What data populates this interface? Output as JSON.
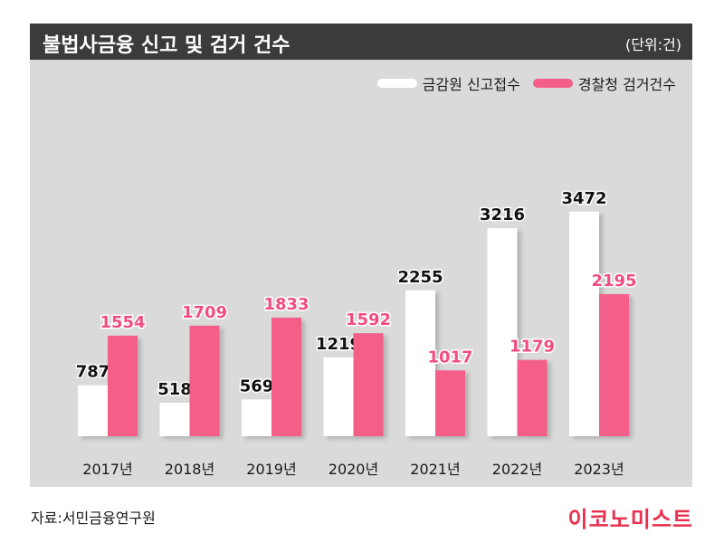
{
  "header": {
    "title": "불법사금융 신고 및 검거 건수",
    "unit": "(단위:건)"
  },
  "footer": {
    "source": "자료:서민금융연구원",
    "brand": "이코노미스트"
  },
  "colors": {
    "report": "#ffffff",
    "arrest": "#f45f8a",
    "arrest_label": "#f04e7f",
    "brand": "#e8304f"
  },
  "chart_data": {
    "type": "bar",
    "categories": [
      "2017년",
      "2018년",
      "2019년",
      "2020년",
      "2021년",
      "2022년",
      "2023년"
    ],
    "series": [
      {
        "name": "금감원 신고접수",
        "values": [
          787,
          518,
          569,
          1219,
          2255,
          3216,
          3472
        ]
      },
      {
        "name": "경찰청 검거건수",
        "values": [
          1554,
          1709,
          1833,
          1592,
          1017,
          1179,
          2195
        ]
      }
    ],
    "data_labels": true,
    "grid": false,
    "legend_position": "top-right"
  }
}
